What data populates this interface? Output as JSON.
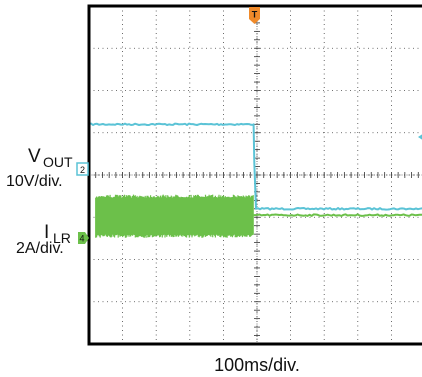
{
  "chart_data": {
    "type": "line",
    "title": "",
    "xlabel": "100ms/div.",
    "grid": true,
    "grid_divisions": {
      "x": 10,
      "y": 8
    },
    "trigger_marker": "T",
    "series": [
      {
        "name_lines": [
          "V",
          "OUT"
        ],
        "scale": "10V/div.",
        "channel_marker": "2",
        "color": "#5bc3d6",
        "ground_level_div": 4.0,
        "points_div": [
          [
            0,
            5.2
          ],
          [
            4.9,
            5.2
          ],
          [
            4.92,
            4.3
          ],
          [
            4.97,
            3.2
          ],
          [
            10,
            3.2
          ]
        ]
      },
      {
        "name_lines": [
          "I",
          "LR"
        ],
        "scale": "2A/div.",
        "channel_marker": "4",
        "color": "#6cc04a",
        "ground_level_div": 3.0,
        "ripple_band_div": {
          "x_range": [
            0.2,
            4.9
          ],
          "low": 2.55,
          "high": 3.5
        },
        "points_div": [
          [
            4.9,
            3.05
          ],
          [
            10,
            3.05
          ]
        ]
      }
    ]
  }
}
